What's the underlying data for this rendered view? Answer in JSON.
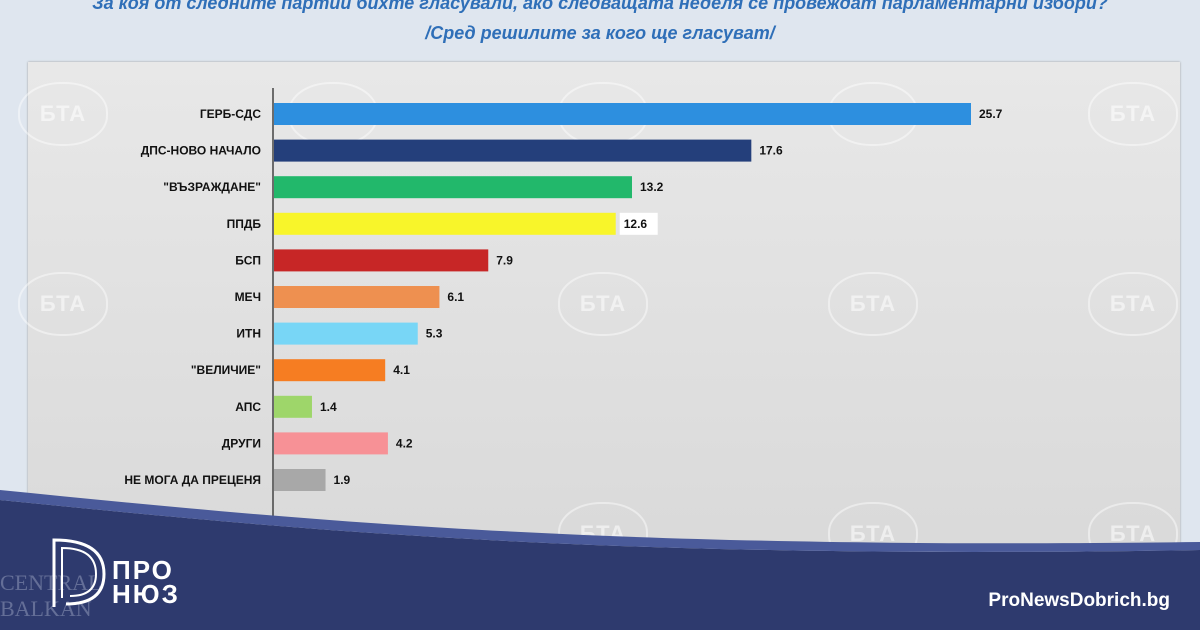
{
  "header": {
    "question": "За коя от следните партии бихте гласували, ако следващата неделя се провеждат парламентарни избори?",
    "subtitle": "/Сред решилите за кого ще гласуват/"
  },
  "watermark": {
    "text": "БТА"
  },
  "branding": {
    "logo_line1": "ПРО",
    "logo_line2": "НЮЗ",
    "site": "ProNewsDobrich.bg",
    "bg_text1": "CENTRAL",
    "bg_text2": "BALKAN"
  },
  "colors": {
    "background": "#dfe6ef",
    "footer": "#2e3a6e",
    "title": "#2f6fb8"
  },
  "chart_data": {
    "type": "bar",
    "orientation": "horizontal",
    "title": "",
    "xlabel": "",
    "ylabel": "",
    "xlim": [
      0,
      28
    ],
    "grid": false,
    "legend": "none",
    "categories": [
      "ГЕРБ-СДС",
      "ДПС-НОВО НАЧАЛО",
      "\"ВЪЗРАЖДАНЕ\"",
      "ППДБ",
      "БСП",
      "МЕЧ",
      "ИТН",
      "\"ВЕЛИЧИЕ\"",
      "АПС",
      "ДРУГИ",
      "НЕ МОГА ДА ПРЕЦЕНЯ"
    ],
    "values": [
      25.7,
      17.6,
      13.2,
      12.6,
      7.9,
      6.1,
      5.3,
      4.1,
      1.4,
      4.2,
      1.9
    ],
    "value_labels": [
      "25.7",
      "17.6",
      "13.2",
      "12.6",
      "7.9",
      "6.1",
      "5.3",
      "4.1",
      "1.4",
      "4.2",
      "1.9"
    ],
    "colors": [
      "#2d8fdf",
      "#243f7b",
      "#22b86b",
      "#f8f52a",
      "#c72626",
      "#ee9050",
      "#78d6f6",
      "#f67d22",
      "#9ed66a",
      "#f79196",
      "#a8a8a8"
    ]
  }
}
